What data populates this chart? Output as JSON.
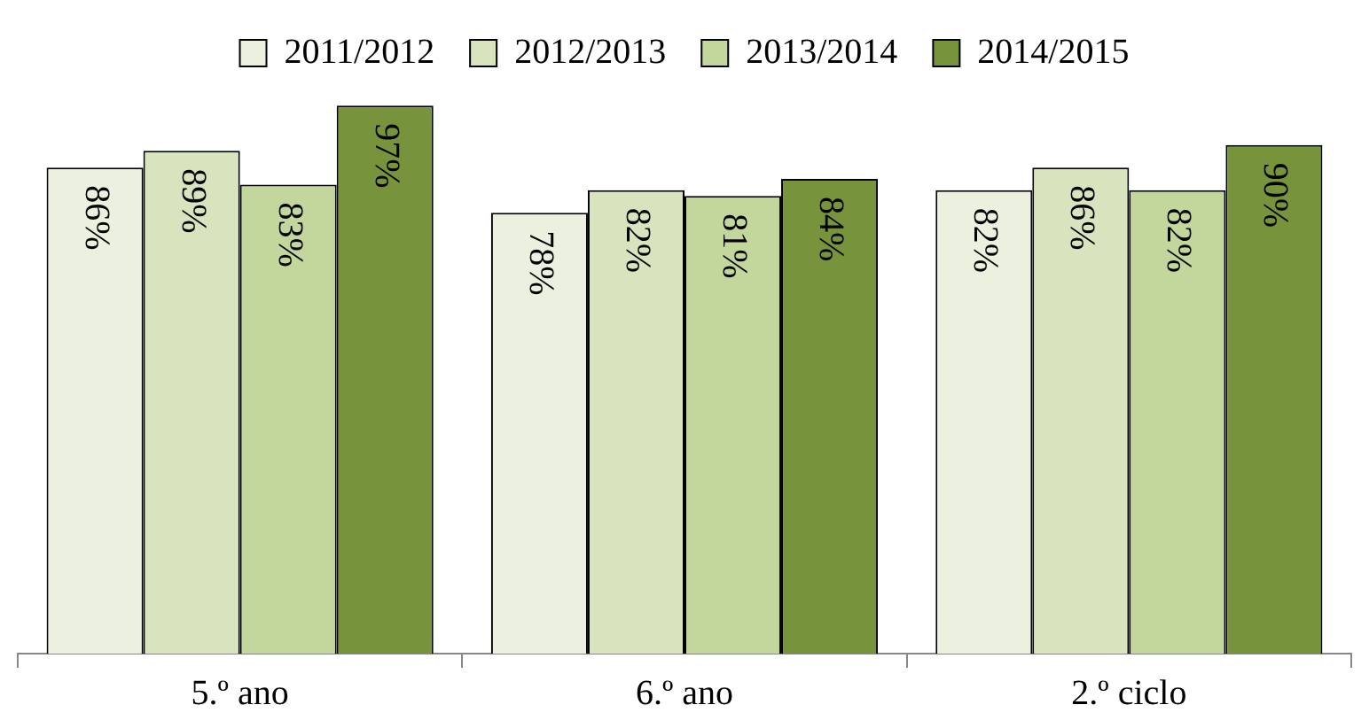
{
  "chart_data": {
    "type": "bar",
    "categories": [
      "5.º ano",
      "6.º ano",
      "2.º ciclo"
    ],
    "series": [
      {
        "name": "2011/2012",
        "color": "#ebf1de",
        "values": [
          86,
          78,
          82
        ],
        "value_labels": [
          "86%",
          "78%",
          "82%"
        ]
      },
      {
        "name": "2012/2013",
        "color": "#d7e4bd",
        "values": [
          89,
          82,
          86
        ],
        "value_labels": [
          "89%",
          "82%",
          "86%"
        ]
      },
      {
        "name": "2013/2014",
        "color": "#c3d69b",
        "values": [
          83,
          81,
          82
        ],
        "value_labels": [
          "83%",
          "81%",
          "82%"
        ]
      },
      {
        "name": "2014/2015",
        "color": "#77933c",
        "values": [
          97,
          84,
          90
        ],
        "value_labels": [
          "97%",
          "84%",
          "90%"
        ]
      }
    ],
    "legend": "top",
    "tick_labels": "x"
  }
}
